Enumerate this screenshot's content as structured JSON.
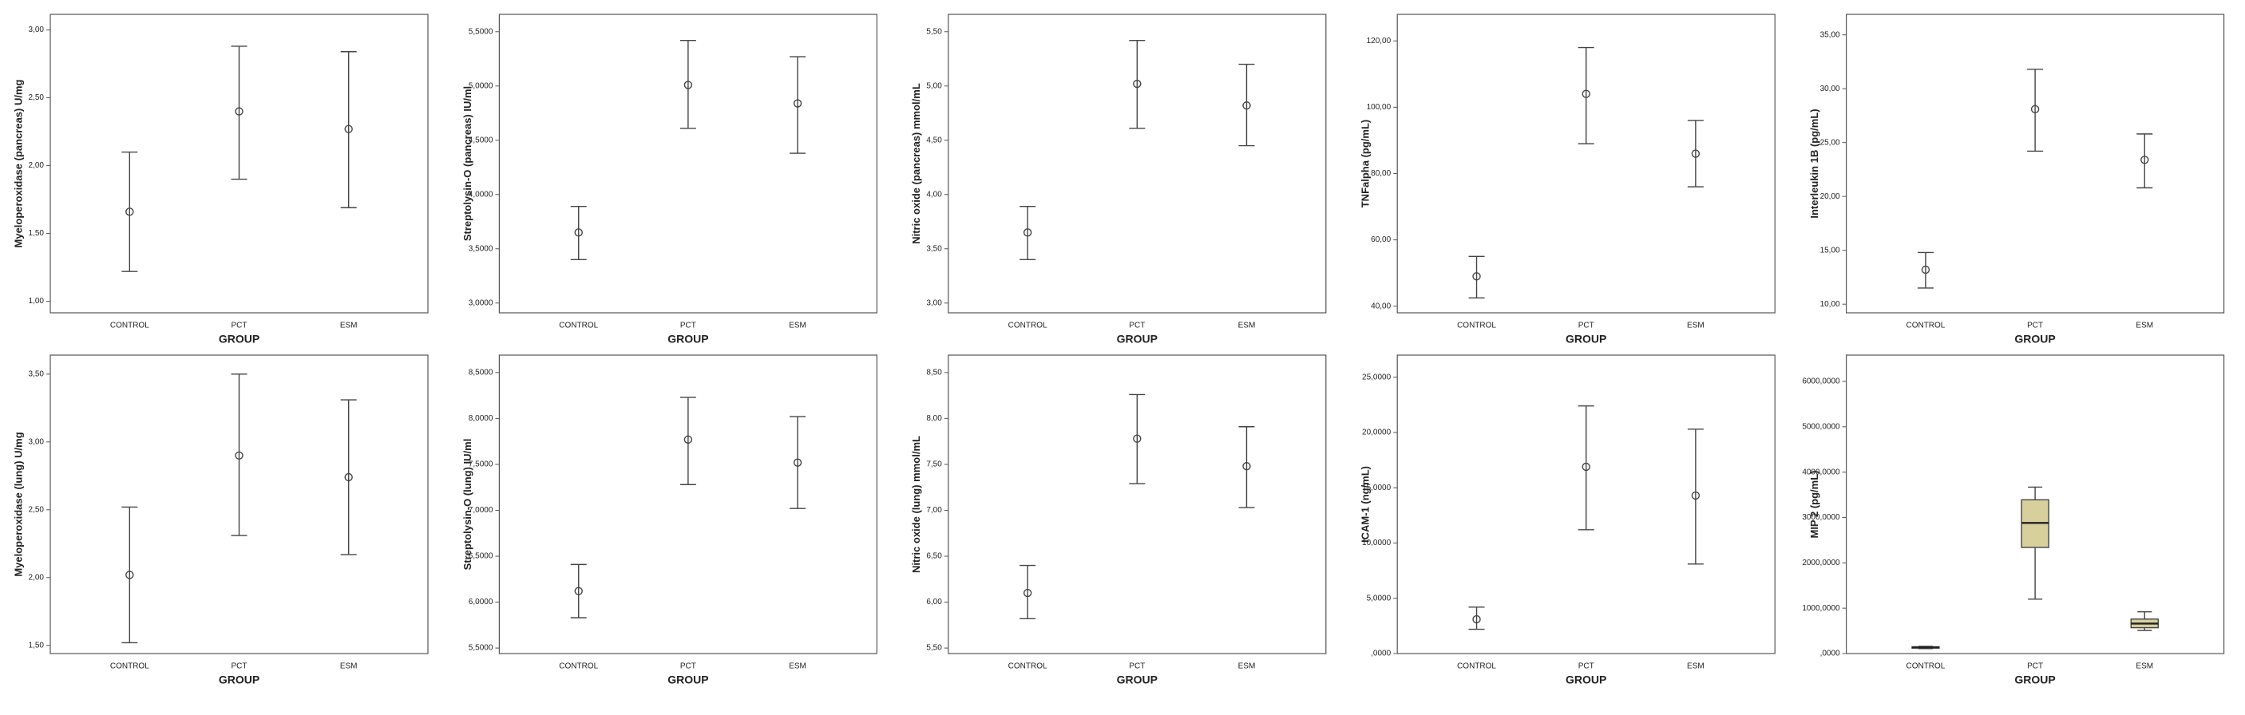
{
  "chart_data": [
    {
      "type": "errorbar",
      "y_label": "Myeloperoxidase (pancreas) U/mg",
      "x_label": "GROUP",
      "categories": [
        "CONTROL",
        "PCT",
        "ESM"
      ],
      "values": [
        1.66,
        2.4,
        2.27
      ],
      "lower": [
        1.22,
        1.9,
        1.69
      ],
      "upper": [
        2.1,
        2.88,
        2.84
      ],
      "ylim": [
        0.915,
        3.115
      ],
      "yticks": [
        {
          "value": 1.0,
          "label": "1,00"
        },
        {
          "value": 1.5,
          "label": "1,50"
        },
        {
          "value": 2.0,
          "label": "2,00"
        },
        {
          "value": 2.5,
          "label": "2,50"
        },
        {
          "value": 3.0,
          "label": "3,00"
        }
      ]
    },
    {
      "type": "errorbar",
      "y_label": "Streptolysin-O (pancreas) IU/ml",
      "x_label": "GROUP",
      "categories": [
        "CONTROL",
        "PCT",
        "ESM"
      ],
      "values": [
        3.65,
        5.01,
        4.84
      ],
      "lower": [
        3.4,
        4.61,
        4.38
      ],
      "upper": [
        3.89,
        5.42,
        5.27
      ],
      "ylim": [
        2.91,
        5.66
      ],
      "yticks": [
        {
          "value": 3.0,
          "label": "3,0000"
        },
        {
          "value": 3.5,
          "label": "3,5000"
        },
        {
          "value": 4.0,
          "label": "4,0000"
        },
        {
          "value": 4.5,
          "label": "4,5000"
        },
        {
          "value": 5.0,
          "label": "5,0000"
        },
        {
          "value": 5.5,
          "label": "5,5000"
        }
      ]
    },
    {
      "type": "errorbar",
      "y_label": "Nitric oxide (pancreas) mmol/mL",
      "x_label": "GROUP",
      "categories": [
        "CONTROL",
        "PCT",
        "ESM"
      ],
      "values": [
        3.65,
        5.02,
        4.82
      ],
      "lower": [
        3.4,
        4.61,
        4.45
      ],
      "upper": [
        3.89,
        5.42,
        5.2
      ],
      "ylim": [
        2.91,
        5.66
      ],
      "yticks": [
        {
          "value": 3.0,
          "label": "3,00"
        },
        {
          "value": 3.5,
          "label": "3,50"
        },
        {
          "value": 4.0,
          "label": "4,00"
        },
        {
          "value": 4.5,
          "label": "4,50"
        },
        {
          "value": 5.0,
          "label": "5,00"
        },
        {
          "value": 5.5,
          "label": "5,50"
        }
      ]
    },
    {
      "type": "errorbar",
      "y_label": "TNFalpha (pg/mL)",
      "x_label": "GROUP",
      "categories": [
        "CONTROL",
        "PCT",
        "ESM"
      ],
      "values": [
        49,
        104,
        86
      ],
      "lower": [
        42.5,
        89,
        76
      ],
      "upper": [
        55,
        118,
        96
      ],
      "ylim": [
        38,
        128
      ],
      "yticks": [
        {
          "value": 40,
          "label": "40,00"
        },
        {
          "value": 60,
          "label": "60,00"
        },
        {
          "value": 80,
          "label": "80,00"
        },
        {
          "value": 100,
          "label": "100,00"
        },
        {
          "value": 120,
          "label": "120,00"
        }
      ]
    },
    {
      "type": "errorbar",
      "y_label": "Interleukin 1B (pg/mL)",
      "x_label": "GROUP",
      "categories": [
        "CONTROL",
        "PCT",
        "ESM"
      ],
      "values": [
        13.2,
        28.1,
        23.4
      ],
      "lower": [
        11.5,
        24.2,
        20.8
      ],
      "upper": [
        14.8,
        31.8,
        25.8
      ],
      "ylim": [
        9.2,
        36.9
      ],
      "yticks": [
        {
          "value": 10,
          "label": "10,00"
        },
        {
          "value": 15,
          "label": "15,00"
        },
        {
          "value": 20,
          "label": "20,00"
        },
        {
          "value": 25,
          "label": "25,00"
        },
        {
          "value": 30,
          "label": "30,00"
        },
        {
          "value": 35,
          "label": "35,00"
        }
      ]
    },
    {
      "type": "errorbar",
      "y_label": "Myeloperoxidase (lung) U/mg",
      "x_label": "GROUP",
      "categories": [
        "CONTROL",
        "PCT",
        "ESM"
      ],
      "values": [
        2.02,
        2.9,
        2.74
      ],
      "lower": [
        1.52,
        2.31,
        2.17
      ],
      "upper": [
        2.52,
        3.5,
        3.31
      ],
      "ylim": [
        1.44,
        3.64
      ],
      "yticks": [
        {
          "value": 1.5,
          "label": "1,50"
        },
        {
          "value": 2.0,
          "label": "2,00"
        },
        {
          "value": 2.5,
          "label": "2,50"
        },
        {
          "value": 3.0,
          "label": "3,00"
        },
        {
          "value": 3.5,
          "label": "3,50"
        }
      ]
    },
    {
      "type": "errorbar",
      "y_label": "Streptolysin-O (lung) IU/ml",
      "x_label": "GROUP",
      "categories": [
        "CONTROL",
        "PCT",
        "ESM"
      ],
      "values": [
        6.12,
        7.77,
        7.52
      ],
      "lower": [
        5.83,
        7.28,
        7.02
      ],
      "upper": [
        6.41,
        8.23,
        8.02
      ],
      "ylim": [
        5.44,
        8.69
      ],
      "yticks": [
        {
          "value": 5.5,
          "label": "5,5000"
        },
        {
          "value": 6.0,
          "label": "6,0000"
        },
        {
          "value": 6.5,
          "label": "6,5000"
        },
        {
          "value": 7.0,
          "label": "7,0000"
        },
        {
          "value": 7.5,
          "label": "7,5000"
        },
        {
          "value": 8.0,
          "label": "8,0000"
        },
        {
          "value": 8.5,
          "label": "8,5000"
        }
      ]
    },
    {
      "type": "errorbar",
      "y_label": "Nitric oxide (lung) mmol/mL",
      "x_label": "GROUP",
      "categories": [
        "CONTROL",
        "PCT",
        "ESM"
      ],
      "values": [
        6.1,
        7.78,
        7.48
      ],
      "lower": [
        5.82,
        7.29,
        7.03
      ],
      "upper": [
        6.4,
        8.26,
        7.91
      ],
      "ylim": [
        5.44,
        8.69
      ],
      "yticks": [
        {
          "value": 5.5,
          "label": "5,50"
        },
        {
          "value": 6.0,
          "label": "6,00"
        },
        {
          "value": 6.5,
          "label": "6,50"
        },
        {
          "value": 7.0,
          "label": "7,00"
        },
        {
          "value": 7.5,
          "label": "7,50"
        },
        {
          "value": 8.0,
          "label": "8,00"
        },
        {
          "value": 8.5,
          "label": "8,50"
        }
      ]
    },
    {
      "type": "errorbar",
      "y_label": "ICAM-1 (ng/mL)",
      "x_label": "GROUP",
      "categories": [
        "CONTROL",
        "PCT",
        "ESM"
      ],
      "values": [
        3.1,
        16.9,
        14.3
      ],
      "lower": [
        2.2,
        11.2,
        8.1
      ],
      "upper": [
        4.2,
        22.4,
        20.3
      ],
      "ylim": [
        0,
        27.0
      ],
      "yticks": [
        {
          "value": 0,
          "label": ",0000"
        },
        {
          "value": 5,
          "label": "5,0000"
        },
        {
          "value": 10,
          "label": "10,0000"
        },
        {
          "value": 15,
          "label": "15,0000"
        },
        {
          "value": 20,
          "label": "20,0000"
        },
        {
          "value": 25,
          "label": "25,0000"
        }
      ]
    },
    {
      "type": "box",
      "y_label": "MIP 2 (pg/mL)",
      "x_label": "GROUP",
      "categories": [
        "CONTROL",
        "PCT",
        "ESM"
      ],
      "color": "#d8d09c",
      "min": [
        110,
        1200,
        510
      ],
      "q1": [
        120,
        2340,
        570
      ],
      "median": [
        135,
        2880,
        660
      ],
      "q3": [
        150,
        3390,
        760
      ],
      "max": [
        160,
        3670,
        920
      ],
      "ylim": [
        0,
        6580
      ],
      "yticks": [
        {
          "value": 0,
          "label": ",0000"
        },
        {
          "value": 1000,
          "label": "1000,0000"
        },
        {
          "value": 2000,
          "label": "2000,0000"
        },
        {
          "value": 3000,
          "label": "3000,0000"
        },
        {
          "value": 4000,
          "label": "4000,0000"
        },
        {
          "value": 5000,
          "label": "5000,0000"
        },
        {
          "value": 6000,
          "label": "6000,0000"
        }
      ]
    }
  ]
}
